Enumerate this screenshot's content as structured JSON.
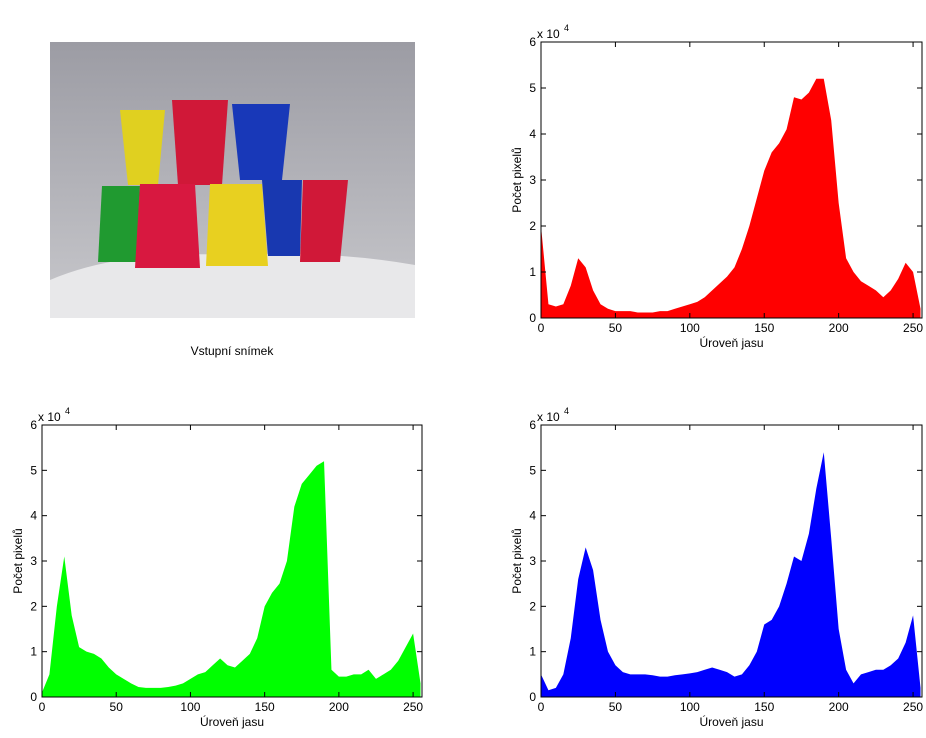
{
  "image": {
    "caption": "Vstupní snímek"
  },
  "chart_data": [
    {
      "type": "area",
      "color": "#ff0000",
      "xlabel": "Úroveň jasu",
      "ylabel": "Počet pixelů",
      "y_scale_label": "x 10",
      "y_scale_exponent": "4",
      "xlim": [
        0,
        256
      ],
      "xticks": [
        0,
        50,
        100,
        150,
        200,
        250
      ],
      "ylim": [
        0,
        6
      ],
      "yticks": [
        0,
        1,
        2,
        3,
        4,
        5,
        6
      ],
      "x": [
        0,
        5,
        10,
        15,
        20,
        25,
        30,
        35,
        40,
        45,
        50,
        55,
        60,
        65,
        70,
        75,
        80,
        85,
        90,
        95,
        100,
        105,
        110,
        115,
        120,
        125,
        130,
        135,
        140,
        145,
        150,
        155,
        160,
        165,
        170,
        175,
        180,
        185,
        190,
        195,
        200,
        205,
        210,
        215,
        220,
        225,
        230,
        235,
        240,
        245,
        250,
        255
      ],
      "values": [
        2.0,
        0.3,
        0.25,
        0.3,
        0.7,
        1.3,
        1.1,
        0.6,
        0.3,
        0.2,
        0.15,
        0.15,
        0.15,
        0.12,
        0.12,
        0.12,
        0.15,
        0.15,
        0.2,
        0.25,
        0.3,
        0.35,
        0.45,
        0.6,
        0.75,
        0.9,
        1.1,
        1.5,
        2.0,
        2.6,
        3.2,
        3.6,
        3.8,
        4.1,
        4.8,
        4.75,
        4.9,
        5.2,
        5.2,
        4.3,
        2.5,
        1.3,
        1.0,
        0.8,
        0.7,
        0.6,
        0.45,
        0.6,
        0.85,
        1.2,
        1.0,
        0.2
      ]
    },
    {
      "type": "area",
      "color": "#00ff00",
      "xlabel": "Úroveň jasu",
      "ylabel": "Počet pixelů",
      "y_scale_label": "x 10",
      "y_scale_exponent": "4",
      "xlim": [
        0,
        256
      ],
      "xticks": [
        0,
        50,
        100,
        150,
        200,
        250
      ],
      "ylim": [
        0,
        6
      ],
      "yticks": [
        0,
        1,
        2,
        3,
        4,
        5,
        6
      ],
      "x": [
        0,
        5,
        10,
        15,
        20,
        25,
        30,
        35,
        40,
        45,
        50,
        55,
        60,
        65,
        70,
        75,
        80,
        85,
        90,
        95,
        100,
        105,
        110,
        115,
        120,
        125,
        130,
        135,
        140,
        145,
        150,
        155,
        160,
        165,
        170,
        175,
        180,
        185,
        190,
        195,
        200,
        205,
        210,
        215,
        220,
        225,
        230,
        235,
        240,
        245,
        250,
        255
      ],
      "values": [
        0.1,
        0.5,
        2.0,
        3.1,
        1.8,
        1.1,
        1.0,
        0.95,
        0.85,
        0.65,
        0.5,
        0.4,
        0.3,
        0.22,
        0.2,
        0.2,
        0.2,
        0.22,
        0.25,
        0.3,
        0.4,
        0.5,
        0.55,
        0.7,
        0.85,
        0.7,
        0.65,
        0.8,
        0.95,
        1.3,
        2.0,
        2.3,
        2.5,
        3.0,
        4.2,
        4.7,
        4.9,
        5.1,
        5.2,
        0.6,
        0.45,
        0.45,
        0.5,
        0.5,
        0.6,
        0.4,
        0.5,
        0.6,
        0.8,
        1.1,
        1.4,
        0.3
      ]
    },
    {
      "type": "area",
      "color": "#0000ff",
      "xlabel": "Úroveň jasu",
      "ylabel": "Počet pixelů",
      "y_scale_label": "x 10",
      "y_scale_exponent": "4",
      "xlim": [
        0,
        256
      ],
      "xticks": [
        0,
        50,
        100,
        150,
        200,
        250
      ],
      "ylim": [
        0,
        6
      ],
      "yticks": [
        0,
        1,
        2,
        3,
        4,
        5,
        6
      ],
      "x": [
        0,
        5,
        10,
        15,
        20,
        25,
        30,
        35,
        40,
        45,
        50,
        55,
        60,
        65,
        70,
        75,
        80,
        85,
        90,
        95,
        100,
        105,
        110,
        115,
        120,
        125,
        130,
        135,
        140,
        145,
        150,
        155,
        160,
        165,
        170,
        175,
        180,
        185,
        190,
        195,
        200,
        205,
        210,
        215,
        220,
        225,
        230,
        235,
        240,
        245,
        250,
        255
      ],
      "values": [
        0.5,
        0.15,
        0.2,
        0.5,
        1.3,
        2.6,
        3.3,
        2.8,
        1.7,
        1.0,
        0.7,
        0.55,
        0.5,
        0.5,
        0.5,
        0.48,
        0.45,
        0.45,
        0.48,
        0.5,
        0.52,
        0.55,
        0.6,
        0.65,
        0.6,
        0.55,
        0.45,
        0.5,
        0.7,
        1.0,
        1.6,
        1.7,
        2.0,
        2.5,
        3.1,
        3.0,
        3.6,
        4.6,
        5.4,
        3.5,
        1.5,
        0.6,
        0.3,
        0.5,
        0.55,
        0.6,
        0.6,
        0.7,
        0.85,
        1.2,
        1.8,
        0.2
      ]
    }
  ]
}
